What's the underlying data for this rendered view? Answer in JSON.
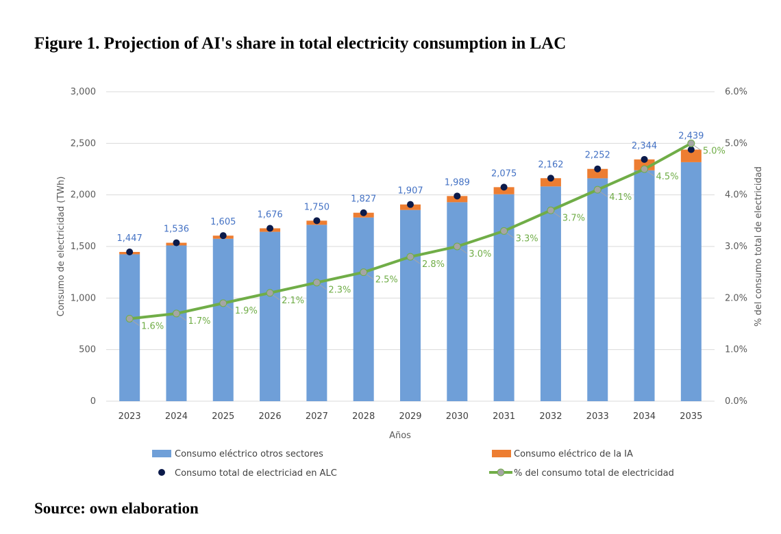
{
  "figure_title": "Figure 1. Projection of AI's share in total electricity consumption in LAC",
  "source_note": "Source: own elaboration",
  "colors": {
    "bar_other": "#6f9fd8",
    "bar_ai": "#ed7d31",
    "total_marker": "#0b1a4a",
    "share_line": "#70ad47",
    "share_marker": "#a5a5a5",
    "total_label": "#4472c4",
    "share_label": "#70ad47",
    "axis_text": "#595959",
    "grid": "#d9d9d9"
  },
  "chart_data": {
    "type": "bar",
    "xlabel": "Años",
    "ylabel": "Consumo de electricidad (TWh)",
    "y2label": "% del consumo total de electricidad",
    "ylim": [
      0,
      3000
    ],
    "y2lim": [
      0,
      6
    ],
    "yticks": [
      "0",
      "500",
      "1,000",
      "1,500",
      "2,000",
      "2,500",
      "3,000"
    ],
    "y2ticks": [
      "0.0%",
      "1.0%",
      "2.0%",
      "3.0%",
      "4.0%",
      "5.0%",
      "6.0%"
    ],
    "grid": true,
    "legend_position": "bottom",
    "categories": [
      "2023",
      "2024",
      "2025",
      "2026",
      "2027",
      "2028",
      "2029",
      "2030",
      "2031",
      "2032",
      "2033",
      "2034",
      "2035"
    ],
    "series": [
      {
        "name": "Consumo eléctrico otros sectores",
        "kind": "bar",
        "values": [
          1424,
          1510,
          1575,
          1642,
          1710,
          1781,
          1854,
          1929,
          2006,
          2082,
          2161,
          2238,
          2317
        ]
      },
      {
        "name": "Consumo eléctrico de la IA",
        "kind": "bar",
        "values": [
          23,
          26,
          30,
          34,
          40,
          46,
          53,
          60,
          69,
          80,
          91,
          106,
          122
        ]
      },
      {
        "name": "Consumo total de electriciad en ALC",
        "kind": "marker",
        "values": [
          1447,
          1536,
          1605,
          1676,
          1750,
          1827,
          1907,
          1989,
          2075,
          2162,
          2252,
          2344,
          2439
        ]
      },
      {
        "name": "% del consumo total de electricidad",
        "kind": "line",
        "axis": "right",
        "values": [
          1.6,
          1.7,
          1.9,
          2.1,
          2.3,
          2.5,
          2.8,
          3.0,
          3.3,
          3.7,
          4.1,
          4.5,
          5.0
        ]
      }
    ],
    "total_labels": [
      "1,447",
      "1,536",
      "1,605",
      "1,676",
      "1,750",
      "1,827",
      "1,907",
      "1,989",
      "2,075",
      "2,162",
      "2,252",
      "2,344",
      "2,439"
    ],
    "share_labels": [
      "1.6%",
      "1.7%",
      "1.9%",
      "2.1%",
      "2.3%",
      "2.5%",
      "2.8%",
      "3.0%",
      "3.3%",
      "3.7%",
      "4.1%",
      "4.5%",
      "5.0%"
    ]
  }
}
